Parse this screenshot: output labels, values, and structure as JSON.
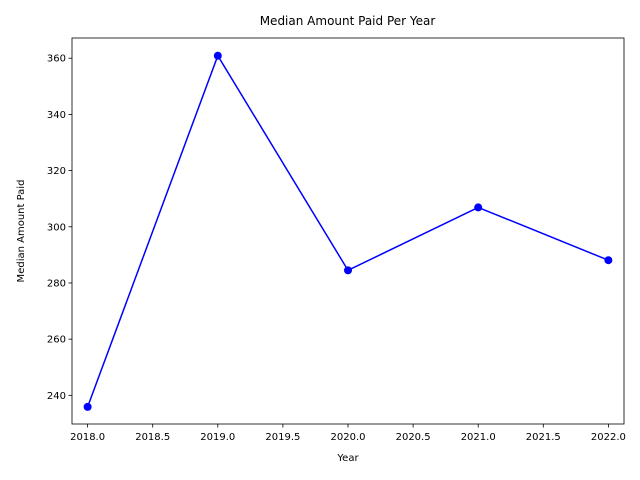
{
  "chart_data": {
    "type": "line",
    "title": "Median Amount Paid Per Year",
    "xlabel": "Year",
    "ylabel": "Median Amount Paid",
    "xlim": [
      2017.88,
      2022.12
    ],
    "ylim": [
      229.8,
      367.2
    ],
    "xticks": [
      2018.0,
      2018.5,
      2019.0,
      2019.5,
      2020.0,
      2020.5,
      2021.0,
      2021.5,
      2022.0
    ],
    "xtick_labels": [
      "2018.0",
      "2018.5",
      "2019.0",
      "2019.5",
      "2020.0",
      "2020.5",
      "2021.0",
      "2021.5",
      "2022.0"
    ],
    "yticks": [
      240,
      260,
      280,
      300,
      320,
      340,
      360
    ],
    "ytick_labels": [
      "240",
      "260",
      "280",
      "300",
      "320",
      "340",
      "360"
    ],
    "grid": false,
    "marker": "circle",
    "color": "#0000ff",
    "series": [
      {
        "x": [
          2018,
          2019,
          2020,
          2021,
          2022
        ],
        "values": [
          235.9,
          360.9,
          284.5,
          306.9,
          288.1
        ]
      }
    ]
  }
}
